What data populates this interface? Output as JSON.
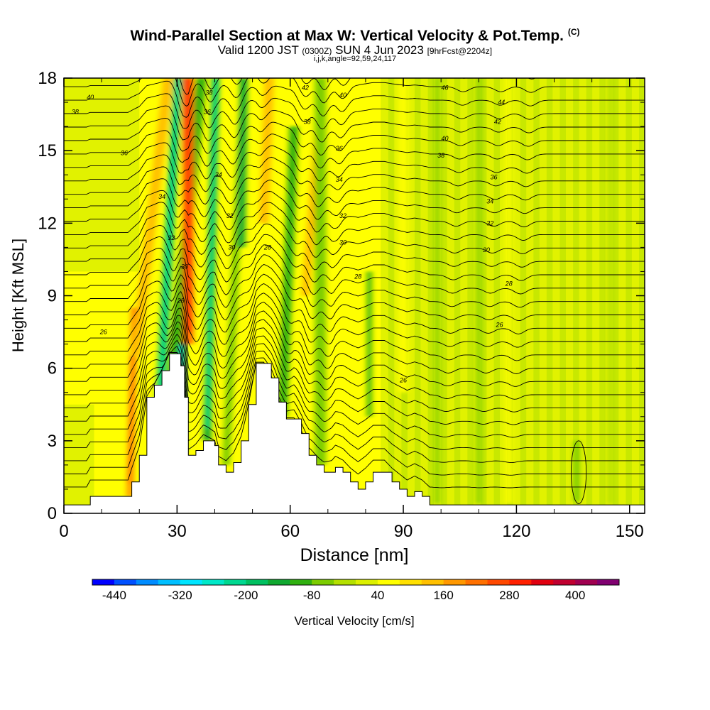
{
  "title": {
    "main": "Wind-Parallel Section at Max W: Vertical Velocity & Pot.Temp.",
    "copyright": "(C)",
    "valid_prefix": "Valid 1200 JST",
    "utc": "(0300Z)",
    "date": "SUN 4 Jun 2023",
    "forecast": "[9hrFcst@2204z]",
    "indices": "i,j,k,angle=92,59,24,117"
  },
  "chart_data": {
    "type": "heatmap",
    "xlabel": "Distance [nm]",
    "ylabel": "Height [Kft MSL]",
    "xlim": [
      0,
      154
    ],
    "ylim": [
      0,
      18
    ],
    "x_ticks": [
      0,
      30,
      60,
      90,
      120,
      150
    ],
    "y_ticks": [
      0,
      3,
      6,
      9,
      12,
      15,
      18
    ],
    "grid": false,
    "colorbar": {
      "label": "Vertical Velocity [cm/s]",
      "placement": "bottom",
      "tick_labels": [
        "-440",
        "-320",
        "-200",
        "-80",
        "40",
        "160",
        "280",
        "400"
      ],
      "levels": [
        -480,
        -440,
        -400,
        -360,
        -320,
        -280,
        -240,
        -200,
        -160,
        -120,
        -80,
        -40,
        0,
        40,
        80,
        120,
        160,
        200,
        240,
        280,
        320,
        360,
        400,
        440,
        480
      ],
      "colors": [
        "#0000ff",
        "#0050ff",
        "#008cff",
        "#00bfff",
        "#00e5ff",
        "#00e8c8",
        "#00d890",
        "#00c060",
        "#10a830",
        "#30b010",
        "#7ccc00",
        "#b4e000",
        "#dcf000",
        "#ffff00",
        "#ffe000",
        "#ffc000",
        "#ff9800",
        "#ff7000",
        "#ff4800",
        "#ff2000",
        "#e00010",
        "#c00030",
        "#a00050",
        "#800070"
      ]
    },
    "terrain_top_kft": [
      [
        0,
        0.35
      ],
      [
        6,
        0.35
      ],
      [
        7,
        0.7
      ],
      [
        17,
        0.7
      ],
      [
        18,
        1.3
      ],
      [
        20,
        2.4
      ],
      [
        22,
        4.8
      ],
      [
        24,
        5.3
      ],
      [
        26,
        5.9
      ],
      [
        28,
        6.6
      ],
      [
        30,
        6.6
      ],
      [
        31,
        6.1
      ],
      [
        32,
        4.8
      ],
      [
        33,
        2.4
      ],
      [
        35,
        2.6
      ],
      [
        37,
        3.0
      ],
      [
        40,
        2.8
      ],
      [
        41,
        2.0
      ],
      [
        43,
        1.7
      ],
      [
        45,
        2.1
      ],
      [
        47,
        3.0
      ],
      [
        49,
        4.5
      ],
      [
        51,
        6.2
      ],
      [
        53,
        6.2
      ],
      [
        55,
        5.6
      ],
      [
        57,
        4.6
      ],
      [
        59,
        3.9
      ],
      [
        61,
        3.9
      ],
      [
        63,
        3.3
      ],
      [
        65,
        2.4
      ],
      [
        67,
        2.0
      ],
      [
        69,
        1.7
      ],
      [
        71,
        1.7
      ],
      [
        72,
        1.9
      ],
      [
        74,
        1.7
      ],
      [
        76,
        1.3
      ],
      [
        78,
        1.0
      ],
      [
        80,
        1.3
      ],
      [
        82,
        1.7
      ],
      [
        85,
        1.7
      ],
      [
        87,
        1.3
      ],
      [
        89,
        1.0
      ],
      [
        91,
        0.7
      ],
      [
        93,
        0.9
      ],
      [
        95,
        0.7
      ],
      [
        97,
        0.35
      ],
      [
        154,
        0.35
      ]
    ],
    "vertical_velocity_features": [
      {
        "x": 17.5,
        "z0": 0.7,
        "z1": 8.5,
        "width": 1.8,
        "slope": 0.15,
        "value": 160
      },
      {
        "x": 19,
        "z0": 6.5,
        "z1": 18,
        "width": 2.6,
        "slope": 0.75,
        "value": 140
      },
      {
        "x": 25.5,
        "z0": 4.5,
        "z1": 18,
        "width": 2.3,
        "slope": 0.35,
        "value": -180
      },
      {
        "x": 28,
        "z0": 4,
        "z1": 18,
        "width": 2.8,
        "slope": 0.6,
        "value": -100
      },
      {
        "x": 32.5,
        "z0": 9.5,
        "z1": 18,
        "width": 1.4,
        "slope": -0.05,
        "value": 400
      },
      {
        "x": 33,
        "z0": 7,
        "z1": 18,
        "width": 2.8,
        "slope": 0,
        "value": 220
      },
      {
        "x": 31.5,
        "z0": 2.5,
        "z1": 7,
        "width": 1.5,
        "slope": 0,
        "value": -240
      },
      {
        "x": 38,
        "z0": 3,
        "z1": 18,
        "width": 2.0,
        "slope": 0.15,
        "value": -160
      },
      {
        "x": 43,
        "z0": 2,
        "z1": 18,
        "width": 2.0,
        "slope": 0.3,
        "value": -70
      },
      {
        "x": 47,
        "z0": 11,
        "z1": 18,
        "width": 2.0,
        "slope": 0.1,
        "value": -140
      },
      {
        "x": 53,
        "z0": 12,
        "z1": 18,
        "width": 2.5,
        "slope": 0.25,
        "value": 120
      },
      {
        "x": 58,
        "z0": 4,
        "z1": 16,
        "width": 2.4,
        "slope": 0.25,
        "value": -120
      },
      {
        "x": 64,
        "z0": 9,
        "z1": 18,
        "width": 2.0,
        "slope": 0.5,
        "value": 130
      },
      {
        "x": 68,
        "z0": 2,
        "z1": 18,
        "width": 3.0,
        "slope": 0,
        "value": -60
      },
      {
        "x": 81,
        "z0": 4,
        "z1": 10,
        "width": 1.3,
        "slope": 0,
        "value": -110
      },
      {
        "x": 90,
        "z0": 5,
        "z1": 18,
        "width": 2.5,
        "slope": 0,
        "value": 50
      },
      {
        "x": 99,
        "z0": 0.4,
        "z1": 18,
        "width": 1.2,
        "slope": 0,
        "value": -60
      },
      {
        "x": 110,
        "z0": 0.4,
        "z1": 18,
        "width": 1.2,
        "slope": 0,
        "value": -50
      },
      {
        "x": 118,
        "z0": 0.4,
        "z1": 18,
        "width": 1.6,
        "slope": 0,
        "value": 60
      },
      {
        "x": 136,
        "z0": 0.5,
        "z1": 3,
        "width": 1.5,
        "slope": 0,
        "value": -50
      },
      {
        "x": 145,
        "z0": 0.4,
        "z1": 18,
        "width": 1.5,
        "slope": 0,
        "value": -40
      }
    ],
    "theta_contour_labels": [
      {
        "text": "40",
        "x": 7,
        "z": 17.2
      },
      {
        "text": "38",
        "x": 3,
        "z": 16.6
      },
      {
        "text": "36",
        "x": 16,
        "z": 14.9
      },
      {
        "text": "34",
        "x": 26,
        "z": 13.1
      },
      {
        "text": "32",
        "x": 28.5,
        "z": 11.4
      },
      {
        "text": "30",
        "x": 32,
        "z": 10.2
      },
      {
        "text": "28",
        "x": 31,
        "z": 8.8
      },
      {
        "text": "26",
        "x": 10.5,
        "z": 7.5
      },
      {
        "text": "38",
        "x": 38.5,
        "z": 17.4
      },
      {
        "text": "36",
        "x": 38,
        "z": 16.6
      },
      {
        "text": "34",
        "x": 41,
        "z": 14.0
      },
      {
        "text": "32",
        "x": 44,
        "z": 12.3
      },
      {
        "text": "30",
        "x": 44.5,
        "z": 11.0
      },
      {
        "text": "28",
        "x": 54,
        "z": 11.0
      },
      {
        "text": "42",
        "x": 64,
        "z": 17.6
      },
      {
        "text": "38",
        "x": 64.5,
        "z": 16.2
      },
      {
        "text": "40",
        "x": 74,
        "z": 17.3
      },
      {
        "text": "36",
        "x": 73,
        "z": 15.1
      },
      {
        "text": "34",
        "x": 73,
        "z": 13.8
      },
      {
        "text": "32",
        "x": 74,
        "z": 12.3
      },
      {
        "text": "30",
        "x": 74,
        "z": 11.2
      },
      {
        "text": "28",
        "x": 78,
        "z": 9.8
      },
      {
        "text": "26",
        "x": 90,
        "z": 5.5
      },
      {
        "text": "46",
        "x": 101,
        "z": 17.6
      },
      {
        "text": "40",
        "x": 101,
        "z": 15.5
      },
      {
        "text": "38",
        "x": 100,
        "z": 14.8
      },
      {
        "text": "44",
        "x": 116,
        "z": 17.0
      },
      {
        "text": "42",
        "x": 115,
        "z": 16.2
      },
      {
        "text": "36",
        "x": 114,
        "z": 13.9
      },
      {
        "text": "34",
        "x": 113,
        "z": 12.9
      },
      {
        "text": "32",
        "x": 113,
        "z": 12.0
      },
      {
        "text": "30",
        "x": 112,
        "z": 10.9
      },
      {
        "text": "28",
        "x": 118,
        "z": 9.5
      },
      {
        "text": "26",
        "x": 115.5,
        "z": 7.8
      }
    ]
  }
}
